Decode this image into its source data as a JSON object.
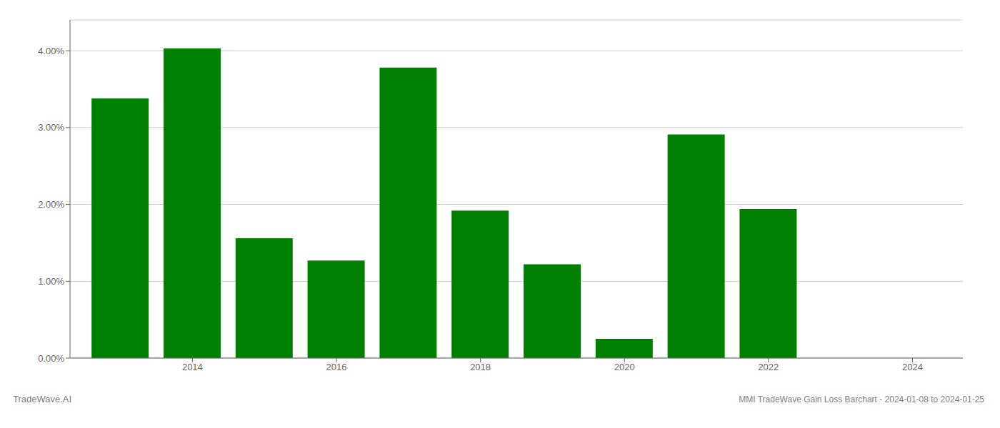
{
  "chart_data": {
    "type": "bar",
    "title": "MMI TradeWave Gain Loss Barchart - 2024-01-08 to 2024-01-25",
    "annotations": [
      "TradeWave.AI"
    ],
    "x": [
      2013,
      2014,
      2015,
      2016,
      2017,
      2018,
      2019,
      2020,
      2021,
      2022,
      2023
    ],
    "values": [
      0.0338,
      0.0403,
      0.0156,
      0.0127,
      0.0378,
      0.0192,
      0.0122,
      0.0025,
      0.0291,
      0.0194,
      0.0
    ],
    "color": "#008000",
    "xlim": [
      2012.3,
      2024.7
    ],
    "xticks": [
      2014,
      2016,
      2018,
      2020,
      2022,
      2024
    ],
    "ylim": [
      0,
      0.044
    ],
    "yticks": [
      {
        "value": 0.0,
        "label": "0.00%"
      },
      {
        "value": 0.01,
        "label": "1.00%"
      },
      {
        "value": 0.02,
        "label": "2.00%"
      },
      {
        "value": 0.03,
        "label": "3.00%"
      },
      {
        "value": 0.04,
        "label": "4.00%"
      }
    ],
    "grid": true
  }
}
